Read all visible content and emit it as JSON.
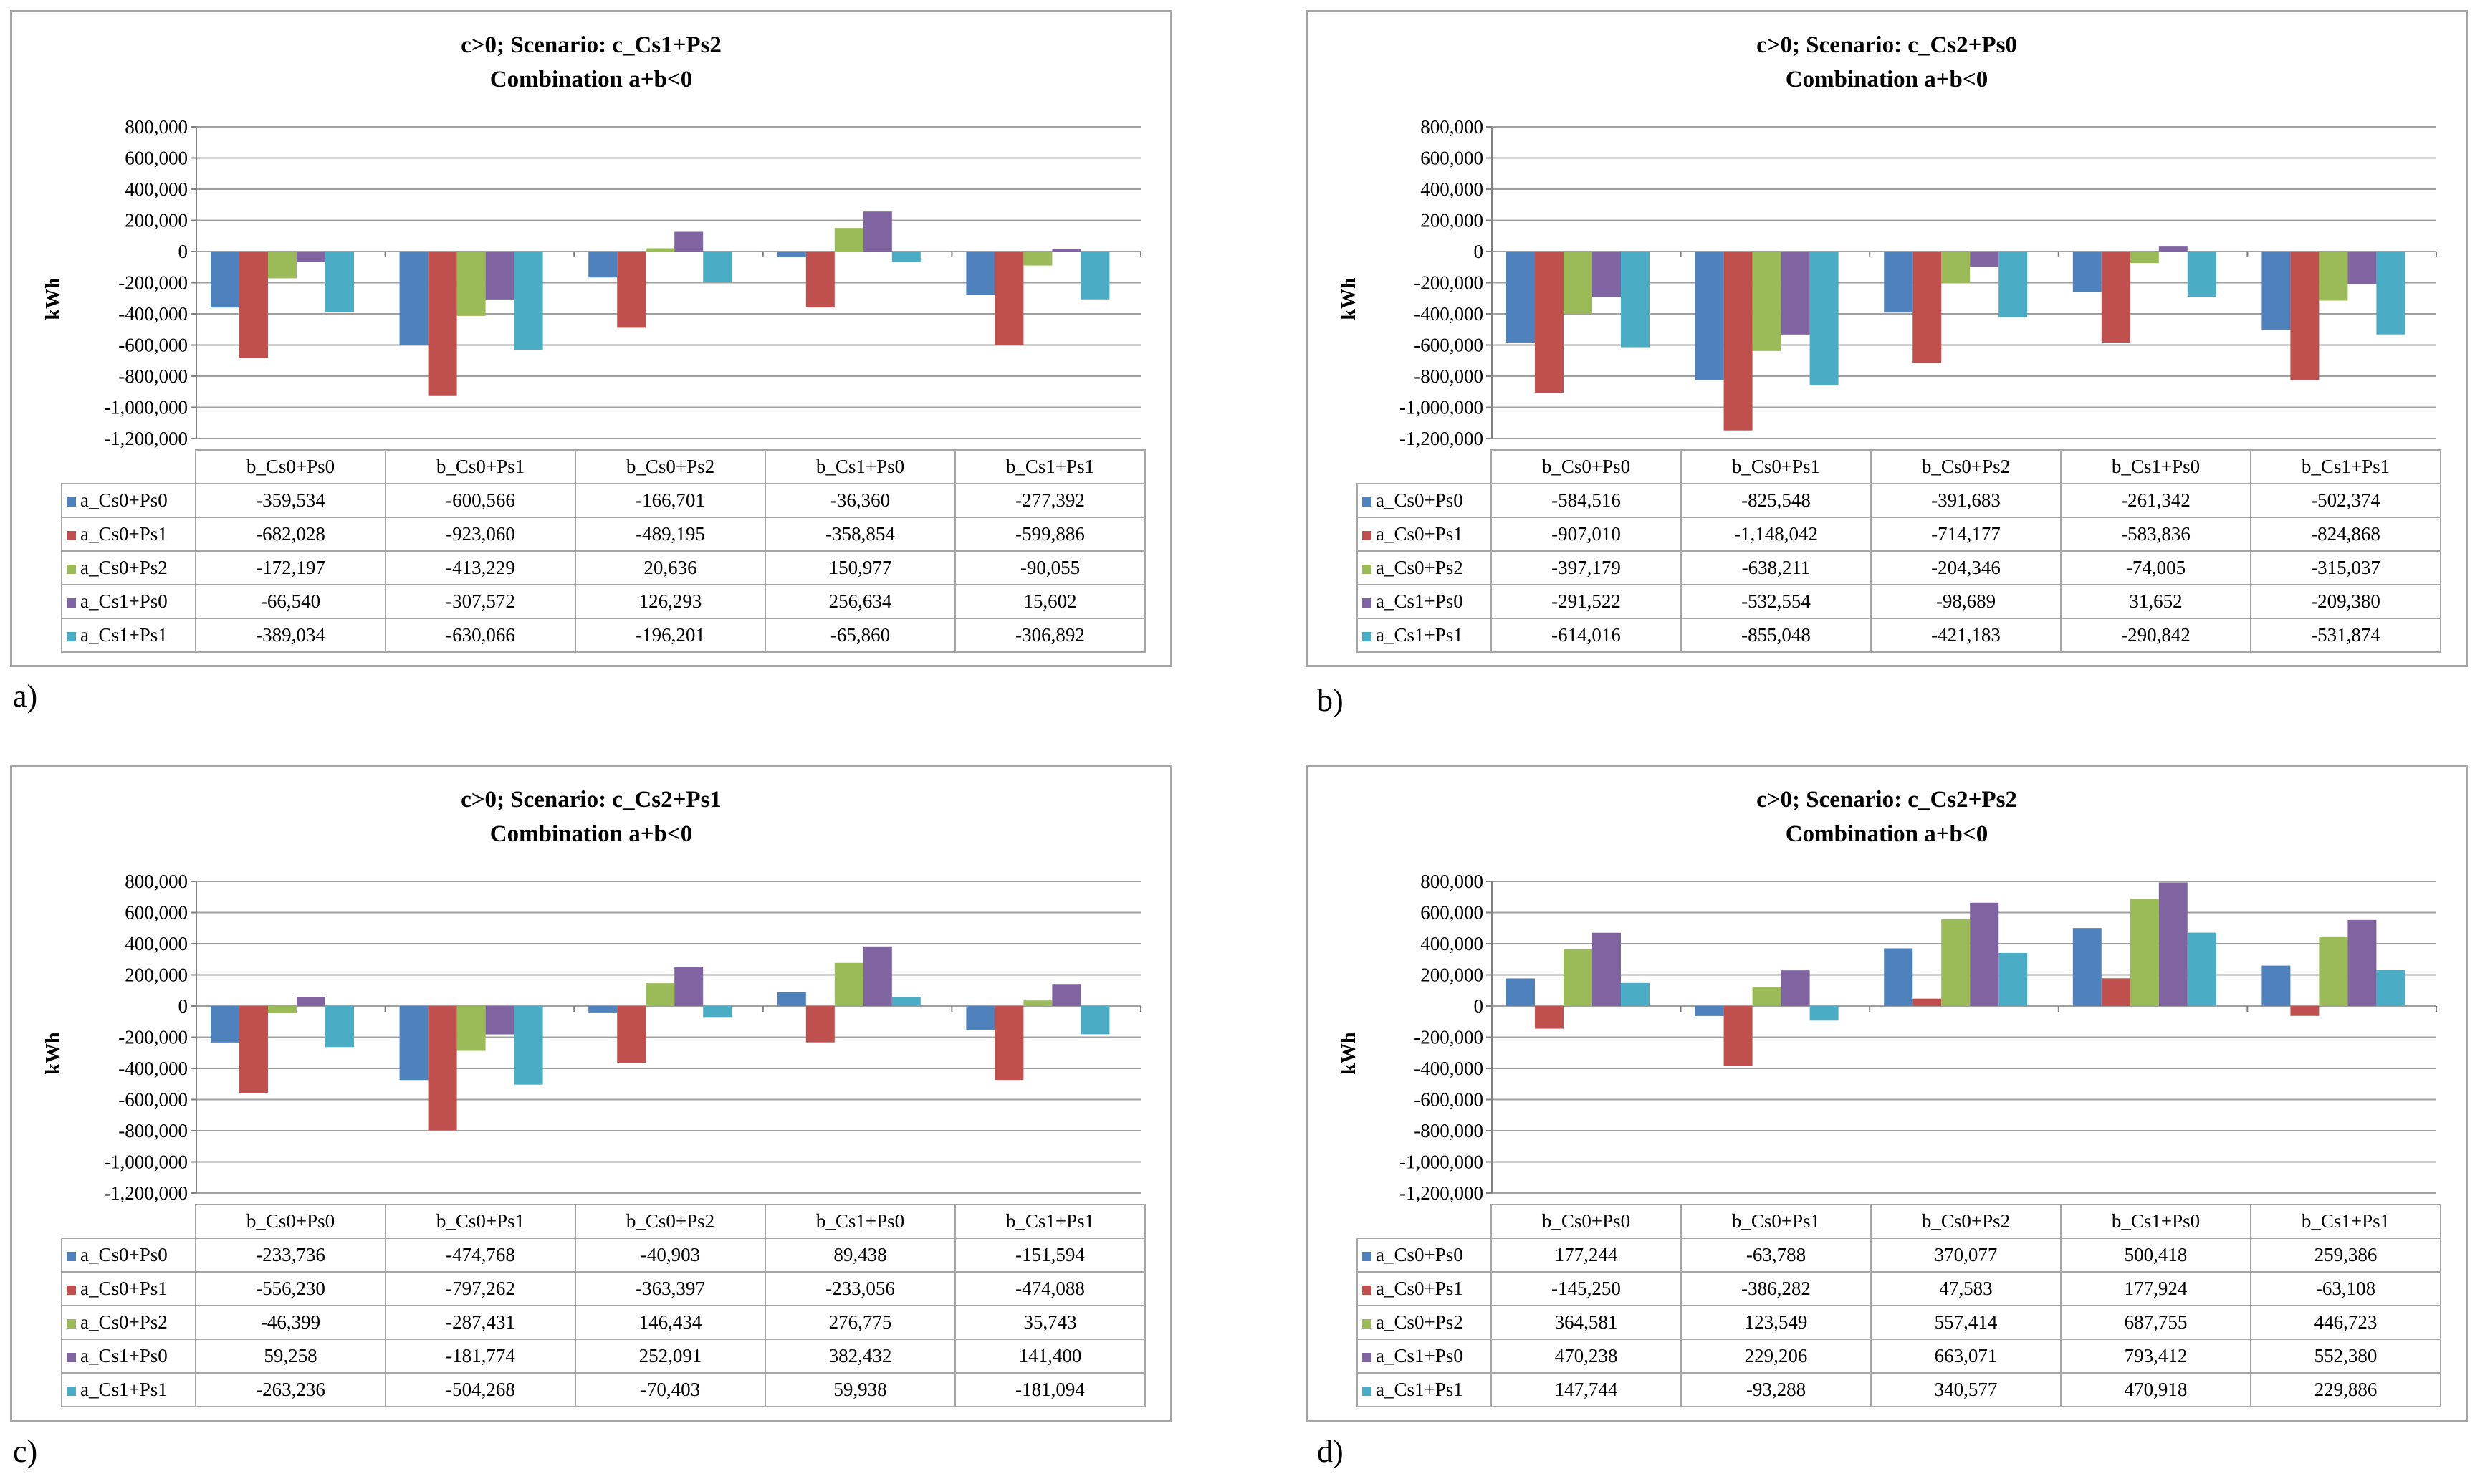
{
  "colors": [
    "#4f81bd",
    "#c0504d",
    "#9bbb59",
    "#8064a2",
    "#4bacc6"
  ],
  "panel_letters": [
    "a)",
    "b)",
    "c)",
    "d)"
  ],
  "y_axis_label": "kWh",
  "chart_data": [
    {
      "type": "bar",
      "title": "c>0; Scenario: c_Cs1+Ps2",
      "subtitle": "Combination a+b<0",
      "ylabel": "kWh",
      "ylim": [
        -1200000,
        800000
      ],
      "yticks": [
        "800,000",
        "600,000",
        "400,000",
        "200,000",
        "0",
        "-200,000",
        "-400,000",
        "-600,000",
        "-800,000",
        "-1,000,000",
        "-1,200,000"
      ],
      "categories": [
        "b_Cs0+Ps0",
        "b_Cs0+Ps1",
        "b_Cs0+Ps2",
        "b_Cs1+Ps0",
        "b_Cs1+Ps1"
      ],
      "series": [
        {
          "name": "a_Cs0+Ps0",
          "values": [
            -359534,
            -600566,
            -166701,
            -36360,
            -277392
          ],
          "labels": [
            "-359,534",
            "-600,566",
            "-166,701",
            "-36,360",
            "-277,392"
          ]
        },
        {
          "name": "a_Cs0+Ps1",
          "values": [
            -682028,
            -923060,
            -489195,
            -358854,
            -599886
          ],
          "labels": [
            "-682,028",
            "-923,060",
            "-489,195",
            "-358,854",
            "-599,886"
          ]
        },
        {
          "name": "a_Cs0+Ps2",
          "values": [
            -172197,
            -413229,
            20636,
            150977,
            -90055
          ],
          "labels": [
            "-172,197",
            "-413,229",
            "20,636",
            "150,977",
            "-90,055"
          ]
        },
        {
          "name": "a_Cs1+Ps0",
          "values": [
            -66540,
            -307572,
            126293,
            256634,
            15602
          ],
          "labels": [
            "-66,540",
            "-307,572",
            "126,293",
            "256,634",
            "15,602"
          ]
        },
        {
          "name": "a_Cs1+Ps1",
          "values": [
            -389034,
            -630066,
            -196201,
            -65860,
            -306892
          ],
          "labels": [
            "-389,034",
            "-630,066",
            "-196,201",
            "-65,860",
            "-306,892"
          ]
        }
      ]
    },
    {
      "type": "bar",
      "title": "c>0; Scenario: c_Cs2+Ps0",
      "subtitle": "Combination a+b<0",
      "ylabel": "kWh",
      "ylim": [
        -1200000,
        800000
      ],
      "yticks": [
        "800,000",
        "600,000",
        "400,000",
        "200,000",
        "0",
        "-200,000",
        "-400,000",
        "-600,000",
        "-800,000",
        "-1,000,000",
        "-1,200,000"
      ],
      "categories": [
        "b_Cs0+Ps0",
        "b_Cs0+Ps1",
        "b_Cs0+Ps2",
        "b_Cs1+Ps0",
        "b_Cs1+Ps1"
      ],
      "series": [
        {
          "name": "a_Cs0+Ps0",
          "values": [
            -584516,
            -825548,
            -391683,
            -261342,
            -502374
          ],
          "labels": [
            "-584,516",
            "-825,548",
            "-391,683",
            "-261,342",
            "-502,374"
          ]
        },
        {
          "name": "a_Cs0+Ps1",
          "values": [
            -907010,
            -1148042,
            -714177,
            -583836,
            -824868
          ],
          "labels": [
            "-907,010",
            "-1,148,042",
            "-714,177",
            "-583,836",
            "-824,868"
          ]
        },
        {
          "name": "a_Cs0+Ps2",
          "values": [
            -397179,
            -638211,
            -204346,
            -74005,
            -315037
          ],
          "labels": [
            "-397,179",
            "-638,211",
            "-204,346",
            "-74,005",
            "-315,037"
          ]
        },
        {
          "name": "a_Cs1+Ps0",
          "values": [
            -291522,
            -532554,
            -98689,
            31652,
            -209380
          ],
          "labels": [
            "-291,522",
            "-532,554",
            "-98,689",
            "31,652",
            "-209,380"
          ]
        },
        {
          "name": "a_Cs1+Ps1",
          "values": [
            -614016,
            -855048,
            -421183,
            -290842,
            -531874
          ],
          "labels": [
            "-614,016",
            "-855,048",
            "-421,183",
            "-290,842",
            "-531,874"
          ]
        }
      ]
    },
    {
      "type": "bar",
      "title": "c>0; Scenario: c_Cs2+Ps1",
      "subtitle": "Combination a+b<0",
      "ylabel": "kWh",
      "ylim": [
        -1200000,
        800000
      ],
      "yticks": [
        "800,000",
        "600,000",
        "400,000",
        "200,000",
        "0",
        "-200,000",
        "-400,000",
        "-600,000",
        "-800,000",
        "-1,000,000",
        "-1,200,000"
      ],
      "categories": [
        "b_Cs0+Ps0",
        "b_Cs0+Ps1",
        "b_Cs0+Ps2",
        "b_Cs1+Ps0",
        "b_Cs1+Ps1"
      ],
      "series": [
        {
          "name": "a_Cs0+Ps0",
          "values": [
            -233736,
            -474768,
            -40903,
            89438,
            -151594
          ],
          "labels": [
            "-233,736",
            "-474,768",
            "-40,903",
            "89,438",
            "-151,594"
          ]
        },
        {
          "name": "a_Cs0+Ps1",
          "values": [
            -556230,
            -797262,
            -363397,
            -233056,
            -474088
          ],
          "labels": [
            "-556,230",
            "-797,262",
            "-363,397",
            "-233,056",
            "-474,088"
          ]
        },
        {
          "name": "a_Cs0+Ps2",
          "values": [
            -46399,
            -287431,
            146434,
            276775,
            35743
          ],
          "labels": [
            "-46,399",
            "-287,431",
            "146,434",
            "276,775",
            "35,743"
          ]
        },
        {
          "name": "a_Cs1+Ps0",
          "values": [
            59258,
            -181774,
            252091,
            382432,
            141400
          ],
          "labels": [
            "59,258",
            "-181,774",
            "252,091",
            "382,432",
            "141,400"
          ]
        },
        {
          "name": "a_Cs1+Ps1",
          "values": [
            -263236,
            -504268,
            -70403,
            59938,
            -181094
          ],
          "labels": [
            "-263,236",
            "-504,268",
            "-70,403",
            "59,938",
            "-181,094"
          ]
        }
      ]
    },
    {
      "type": "bar",
      "title": "c>0; Scenario: c_Cs2+Ps2",
      "subtitle": "Combination a+b<0",
      "ylabel": "kWh",
      "ylim": [
        -1200000,
        800000
      ],
      "yticks": [
        "800,000",
        "600,000",
        "400,000",
        "200,000",
        "0",
        "-200,000",
        "-400,000",
        "-600,000",
        "-800,000",
        "-1,000,000",
        "-1,200,000"
      ],
      "categories": [
        "b_Cs0+Ps0",
        "b_Cs0+Ps1",
        "b_Cs0+Ps2",
        "b_Cs1+Ps0",
        "b_Cs1+Ps1"
      ],
      "series": [
        {
          "name": "a_Cs0+Ps0",
          "values": [
            177244,
            -63788,
            370077,
            500418,
            259386
          ],
          "labels": [
            "177,244",
            "-63,788",
            "370,077",
            "500,418",
            "259,386"
          ]
        },
        {
          "name": "a_Cs0+Ps1",
          "values": [
            -145250,
            -386282,
            47583,
            177924,
            -63108
          ],
          "labels": [
            "-145,250",
            "-386,282",
            "47,583",
            "177,924",
            "-63,108"
          ]
        },
        {
          "name": "a_Cs0+Ps2",
          "values": [
            364581,
            123549,
            557414,
            687755,
            446723
          ],
          "labels": [
            "364,581",
            "123,549",
            "557,414",
            "687,755",
            "446,723"
          ]
        },
        {
          "name": "a_Cs1+Ps0",
          "values": [
            470238,
            229206,
            663071,
            793412,
            552380
          ],
          "labels": [
            "470,238",
            "229,206",
            "663,071",
            "793,412",
            "552,380"
          ]
        },
        {
          "name": "a_Cs1+Ps1",
          "values": [
            147744,
            -93288,
            340577,
            470918,
            229886
          ],
          "labels": [
            "147,744",
            "-93,288",
            "340,577",
            "470,918",
            "229,886"
          ]
        }
      ]
    }
  ]
}
